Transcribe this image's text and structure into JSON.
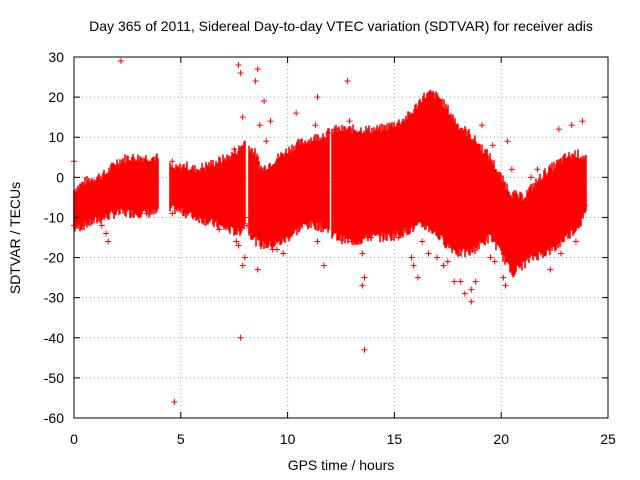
{
  "chart_data": {
    "type": "scatter",
    "title": "Day 365 of 2011, Sidereal Day-to-day VTEC variation (SDTVAR) for receiver adis",
    "xlabel": "GPS time / hours",
    "ylabel": "SDTVAR / TECUs",
    "xlim": [
      0,
      25
    ],
    "ylim": [
      -60,
      30
    ],
    "xticks": [
      0,
      5,
      10,
      15,
      20,
      25
    ],
    "yticks": [
      -60,
      -50,
      -40,
      -30,
      -20,
      -10,
      0,
      10,
      20,
      30
    ],
    "grid": true,
    "marker": "+",
    "color": "#ff0000",
    "series": [
      {
        "name": "SDTVAR",
        "band": {
          "x": [
            0.0,
            0.5,
            1.0,
            1.5,
            2.0,
            2.5,
            3.0,
            3.5,
            3.9,
            4.7,
            5.2,
            5.7,
            6.2,
            6.7,
            7.2,
            7.7,
            8.0,
            8.5,
            8.8,
            9.3,
            9.8,
            10.3,
            10.8,
            11.3,
            11.8,
            12.3,
            12.8,
            13.3,
            13.8,
            14.3,
            14.8,
            15.3,
            15.8,
            16.3,
            16.7,
            17.1,
            17.5,
            18.0,
            18.5,
            19.0,
            19.5,
            20.0,
            20.5,
            21.0,
            21.5,
            22.0,
            22.5,
            23.0,
            23.5,
            24.0
          ],
          "upper": [
            -3,
            -1,
            0,
            1,
            4,
            5,
            5,
            5,
            5,
            2,
            3,
            2,
            3,
            4,
            5,
            7,
            9,
            6,
            2,
            4,
            6,
            8,
            9,
            10,
            11,
            12,
            12,
            12,
            12,
            12,
            13,
            14,
            16,
            20,
            21,
            20,
            17,
            13,
            11,
            8,
            5,
            0,
            -4,
            -5,
            -2,
            1,
            3,
            5,
            6,
            5
          ],
          "lower": [
            -13,
            -12,
            -11,
            -10,
            -9,
            -9,
            -9,
            -9,
            -9,
            -8,
            -9,
            -10,
            -11,
            -12,
            -13,
            -14,
            -12,
            -16,
            -17,
            -17,
            -16,
            -14,
            -12,
            -12,
            -13,
            -15,
            -16,
            -16,
            -15,
            -15,
            -15,
            -14,
            -13,
            -12,
            -13,
            -15,
            -17,
            -19,
            -19,
            -17,
            -15,
            -19,
            -24,
            -22,
            -20,
            -19,
            -18,
            -15,
            -13,
            -9
          ]
        },
        "points": [
          [
            0.0,
            -12
          ],
          [
            0.0,
            4
          ],
          [
            0.5,
            -10
          ],
          [
            1.0,
            -9
          ],
          [
            1.3,
            -12
          ],
          [
            1.5,
            -14
          ],
          [
            1.6,
            -16
          ],
          [
            2.2,
            29
          ],
          [
            3.4,
            -9
          ],
          [
            4.7,
            -56
          ],
          [
            4.6,
            4
          ],
          [
            4.6,
            -9
          ],
          [
            5.3,
            -4
          ],
          [
            5.6,
            1
          ],
          [
            6.2,
            -10
          ],
          [
            6.5,
            2
          ],
          [
            6.8,
            -13
          ],
          [
            7.5,
            7
          ],
          [
            7.6,
            -16
          ],
          [
            7.7,
            -17
          ],
          [
            7.7,
            28
          ],
          [
            7.8,
            -40
          ],
          [
            7.8,
            26
          ],
          [
            8.0,
            -20
          ],
          [
            8.1,
            -12
          ],
          [
            7.9,
            15
          ],
          [
            7.9,
            -22
          ],
          [
            8.0,
            -10
          ],
          [
            8.5,
            -4
          ],
          [
            8.6,
            27
          ],
          [
            8.6,
            -23
          ],
          [
            8.5,
            24
          ],
          [
            8.7,
            13
          ],
          [
            8.9,
            19
          ],
          [
            9.0,
            9
          ],
          [
            9.2,
            14
          ],
          [
            9.3,
            -18
          ],
          [
            9.5,
            -18
          ],
          [
            9.8,
            -19
          ],
          [
            10.4,
            16
          ],
          [
            10.8,
            -11
          ],
          [
            11.3,
            13
          ],
          [
            11.4,
            20
          ],
          [
            11.4,
            -16
          ],
          [
            11.6,
            8
          ],
          [
            11.7,
            -22
          ],
          [
            11.9,
            11
          ],
          [
            12.2,
            12
          ],
          [
            12.8,
            24
          ],
          [
            12.9,
            14
          ],
          [
            13.0,
            -16
          ],
          [
            13.1,
            -14
          ],
          [
            13.5,
            -27
          ],
          [
            13.6,
            -25
          ],
          [
            13.6,
            -43
          ],
          [
            13.5,
            -19
          ],
          [
            13.9,
            -15
          ],
          [
            14.3,
            -11
          ],
          [
            15.2,
            -15
          ],
          [
            15.5,
            -13
          ],
          [
            15.8,
            -20
          ],
          [
            15.9,
            -22
          ],
          [
            16.1,
            -25
          ],
          [
            16.3,
            -16
          ],
          [
            16.6,
            -19
          ],
          [
            17.0,
            -20
          ],
          [
            17.3,
            -22
          ],
          [
            17.5,
            -21
          ],
          [
            17.8,
            -26
          ],
          [
            18.1,
            -26
          ],
          [
            18.3,
            -29
          ],
          [
            18.6,
            -31
          ],
          [
            18.6,
            -28
          ],
          [
            18.8,
            -26
          ],
          [
            19.1,
            13
          ],
          [
            19.5,
            -20
          ],
          [
            19.6,
            8
          ],
          [
            19.7,
            -21
          ],
          [
            20.1,
            -25
          ],
          [
            20.2,
            -27
          ],
          [
            20.3,
            9
          ],
          [
            20.5,
            2
          ],
          [
            20.8,
            -12
          ],
          [
            21.1,
            -6
          ],
          [
            21.4,
            0
          ],
          [
            21.7,
            2
          ],
          [
            22.0,
            -18
          ],
          [
            22.3,
            -23
          ],
          [
            22.7,
            12
          ],
          [
            22.8,
            -19
          ],
          [
            23.0,
            -14
          ],
          [
            23.3,
            13
          ],
          [
            23.4,
            -12
          ],
          [
            23.5,
            -16
          ],
          [
            23.8,
            14
          ],
          [
            23.9,
            -7
          ]
        ]
      }
    ]
  }
}
